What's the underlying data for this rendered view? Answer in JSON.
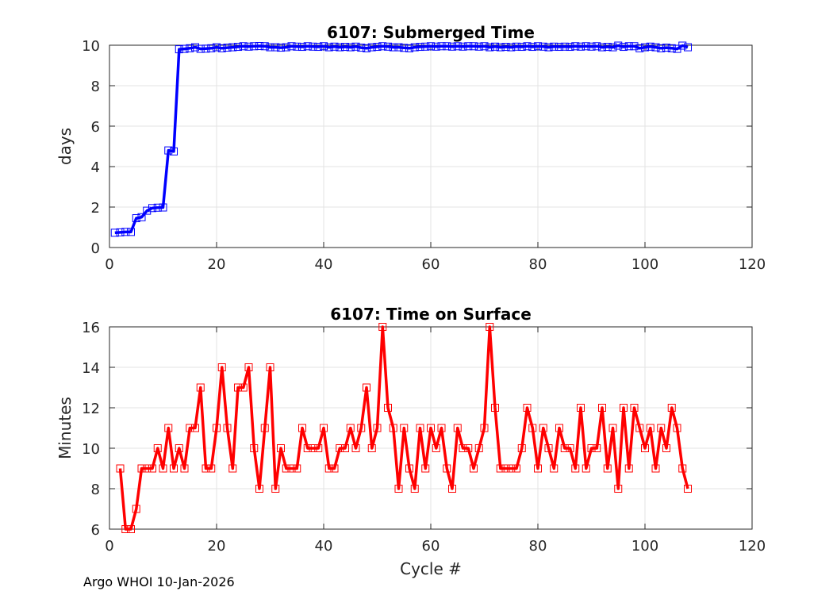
{
  "footer": "Argo WHOI 10-Jan-2026",
  "chart_data": [
    {
      "type": "line",
      "title": "6107: Submerged Time",
      "xlabel": "",
      "ylabel": "days",
      "xlim": [
        0,
        120
      ],
      "ylim": [
        0,
        10
      ],
      "xticks": [
        0,
        20,
        40,
        60,
        80,
        100,
        120
      ],
      "yticks": [
        0,
        2,
        4,
        6,
        8,
        10
      ],
      "grid": true,
      "marker": "square",
      "color": "#0000ff",
      "x": [
        1,
        2,
        3,
        4,
        5,
        6,
        7,
        8,
        9,
        10,
        11,
        12,
        13,
        14,
        15,
        16,
        17,
        18,
        19,
        20,
        21,
        22,
        23,
        24,
        25,
        26,
        27,
        28,
        29,
        30,
        31,
        32,
        33,
        34,
        35,
        36,
        37,
        38,
        39,
        40,
        41,
        42,
        43,
        44,
        45,
        46,
        47,
        48,
        49,
        50,
        51,
        52,
        53,
        54,
        55,
        56,
        57,
        58,
        59,
        60,
        61,
        62,
        63,
        64,
        65,
        66,
        67,
        68,
        69,
        70,
        71,
        72,
        73,
        74,
        75,
        76,
        77,
        78,
        79,
        80,
        81,
        82,
        83,
        84,
        85,
        86,
        87,
        88,
        89,
        90,
        91,
        92,
        93,
        94,
        95,
        96,
        97,
        98,
        99,
        100,
        101,
        102,
        103,
        104,
        105,
        106,
        107,
        108
      ],
      "y": [
        0.73,
        0.75,
        0.77,
        0.77,
        1.45,
        1.5,
        1.82,
        1.95,
        1.97,
        1.98,
        4.8,
        4.75,
        9.8,
        9.82,
        9.85,
        9.9,
        9.82,
        9.83,
        9.85,
        9.9,
        9.85,
        9.88,
        9.9,
        9.92,
        9.95,
        9.93,
        9.95,
        9.96,
        9.95,
        9.9,
        9.9,
        9.88,
        9.9,
        9.95,
        9.93,
        9.92,
        9.95,
        9.93,
        9.92,
        9.95,
        9.9,
        9.93,
        9.9,
        9.92,
        9.9,
        9.93,
        9.88,
        9.85,
        9.9,
        9.92,
        9.95,
        9.93,
        9.9,
        9.9,
        9.87,
        9.85,
        9.9,
        9.92,
        9.93,
        9.95,
        9.93,
        9.95,
        9.95,
        9.93,
        9.95,
        9.93,
        9.95,
        9.95,
        9.93,
        9.95,
        9.9,
        9.93,
        9.9,
        9.92,
        9.9,
        9.93,
        9.92,
        9.95,
        9.92,
        9.95,
        9.93,
        9.9,
        9.93,
        9.92,
        9.93,
        9.92,
        9.95,
        9.93,
        9.95,
        9.93,
        9.95,
        9.9,
        9.92,
        9.9,
        9.98,
        9.92,
        9.95,
        9.95,
        9.85,
        9.9,
        9.93,
        9.9,
        9.85,
        9.88,
        9.85,
        9.82,
        9.98,
        9.9
      ]
    },
    {
      "type": "line",
      "title": "6107: Time on Surface",
      "xlabel": "Cycle #",
      "ylabel": "Minutes",
      "xlim": [
        0,
        120
      ],
      "ylim": [
        6,
        16
      ],
      "xticks": [
        0,
        20,
        40,
        60,
        80,
        100,
        120
      ],
      "yticks": [
        6,
        8,
        10,
        12,
        14,
        16
      ],
      "grid": true,
      "marker": "square",
      "color": "#ff0000",
      "x": [
        2,
        3,
        4,
        5,
        6,
        7,
        8,
        9,
        10,
        11,
        12,
        13,
        14,
        15,
        16,
        17,
        18,
        19,
        20,
        21,
        22,
        23,
        24,
        25,
        26,
        27,
        28,
        29,
        30,
        31,
        32,
        33,
        34,
        35,
        36,
        37,
        38,
        39,
        40,
        41,
        42,
        43,
        44,
        45,
        46,
        47,
        48,
        49,
        50,
        51,
        52,
        53,
        54,
        55,
        56,
        57,
        58,
        59,
        60,
        61,
        62,
        63,
        64,
        65,
        66,
        67,
        68,
        69,
        70,
        71,
        72,
        73,
        74,
        75,
        76,
        77,
        78,
        79,
        80,
        81,
        82,
        83,
        84,
        85,
        86,
        87,
        88,
        89,
        90,
        91,
        92,
        93,
        94,
        95,
        96,
        97,
        98,
        99,
        100,
        101,
        102,
        103,
        104,
        105,
        106,
        107,
        108
      ],
      "y": [
        9,
        6,
        6,
        7,
        9,
        9,
        9,
        10,
        9,
        11,
        9,
        10,
        9,
        11,
        11,
        13,
        9,
        9,
        11,
        14,
        11,
        9,
        13,
        13,
        14,
        10,
        8,
        11,
        14,
        8,
        10,
        9,
        9,
        9,
        11,
        10,
        10,
        10,
        11,
        9,
        9,
        10,
        10,
        11,
        10,
        11,
        13,
        10,
        11,
        16,
        12,
        11,
        8,
        11,
        9,
        8,
        11,
        9,
        11,
        10,
        11,
        9,
        8,
        11,
        10,
        10,
        9,
        10,
        11,
        16,
        12,
        9,
        9,
        9,
        9,
        10,
        12,
        11,
        9,
        11,
        10,
        9,
        11,
        10,
        10,
        9,
        12,
        9,
        10,
        10,
        12,
        9,
        11,
        8,
        12,
        9,
        12,
        11,
        10,
        11,
        9,
        11,
        10,
        12,
        11,
        9,
        8
      ]
    }
  ]
}
